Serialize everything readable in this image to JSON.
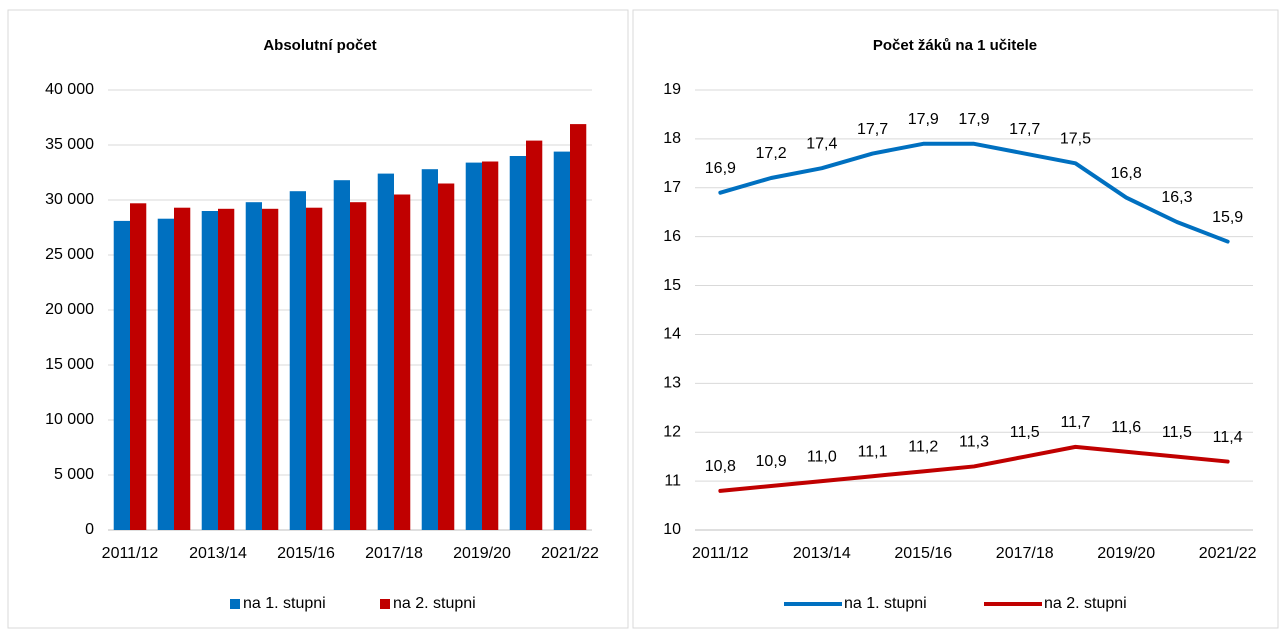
{
  "chart_data": [
    {
      "type": "bar",
      "title": "Absolutní počet",
      "categories": [
        "2011/12",
        null,
        "2013/14",
        null,
        "2015/16",
        null,
        "2017/18",
        null,
        "2019/20",
        null,
        "2021/22"
      ],
      "series": [
        {
          "name": "na 1. stupni",
          "color": "#0070c0",
          "values": [
            28100,
            28300,
            29000,
            29800,
            30800,
            31800,
            32400,
            32800,
            33400,
            34000,
            34400
          ]
        },
        {
          "name": "na 2. stupni",
          "color": "#c00000",
          "values": [
            29700,
            29300,
            29200,
            29200,
            29300,
            29800,
            30500,
            31500,
            33500,
            35400,
            36900
          ]
        }
      ],
      "ylim": [
        0,
        40000
      ],
      "yticks": [
        0,
        {
          "value": 5000,
          "label": "5 000"
        },
        {
          "value": 10000,
          "label": "10 000"
        },
        {
          "value": 15000,
          "label": "15 000"
        },
        {
          "value": 20000,
          "label": "20 000"
        },
        {
          "value": 25000,
          "label": "25 000"
        },
        {
          "value": 30000,
          "label": "30 000"
        },
        {
          "value": 35000,
          "label": "35 000"
        },
        {
          "value": 40000,
          "label": "40 000"
        }
      ],
      "grid": true,
      "legend": "bottom"
    },
    {
      "type": "line",
      "title": "Počet žáků na 1 učitele",
      "categories": [
        "2011/12",
        null,
        "2013/14",
        null,
        "2015/16",
        null,
        "2017/18",
        null,
        "2019/20",
        null,
        "2021/22"
      ],
      "series": [
        {
          "name": "na 1. stupni",
          "color": "#0070c0",
          "values": [
            16.9,
            17.2,
            17.4,
            17.7,
            17.9,
            17.9,
            17.7,
            17.5,
            16.8,
            16.3,
            15.9
          ],
          "value_labels": [
            "16,9",
            "17,2",
            "17,4",
            "17,7",
            "17,9",
            "17,9",
            "17,7",
            "17,5",
            "16,8",
            "16,3",
            "15,9"
          ]
        },
        {
          "name": "na 2. stupni",
          "color": "#c00000",
          "values": [
            10.8,
            10.9,
            11.0,
            11.1,
            11.2,
            11.3,
            11.5,
            11.7,
            11.6,
            11.5,
            11.4
          ],
          "value_labels": [
            "10,8",
            "10,9",
            "11,0",
            "11,1",
            "11,2",
            "11,3",
            "11,5",
            "11,7",
            "11,6",
            "11,5",
            "11,4"
          ]
        }
      ],
      "ylim": [
        10,
        19
      ],
      "yticks": [
        10,
        11,
        12,
        13,
        14,
        15,
        16,
        17,
        18,
        19
      ],
      "grid": true,
      "legend": "bottom"
    }
  ]
}
